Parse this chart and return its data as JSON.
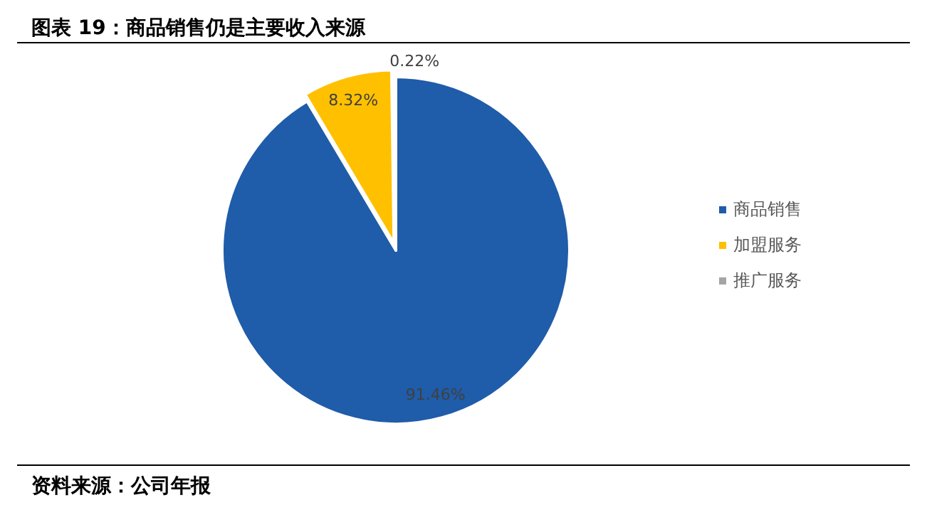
{
  "chart_data": {
    "type": "pie",
    "title": "图表 19：商品销售仍是主要收入来源",
    "categories": [
      "商品销售",
      "加盟服务",
      "推广服务"
    ],
    "values": [
      91.46,
      8.32,
      0.22
    ],
    "colors": [
      "#1f5ca9",
      "#ffc000",
      "#a5a5a5"
    ],
    "value_labels": [
      "91.46%",
      "8.32%",
      "0.22%"
    ],
    "legend": "right",
    "annotations": [
      "资料来源：公司年报"
    ]
  }
}
